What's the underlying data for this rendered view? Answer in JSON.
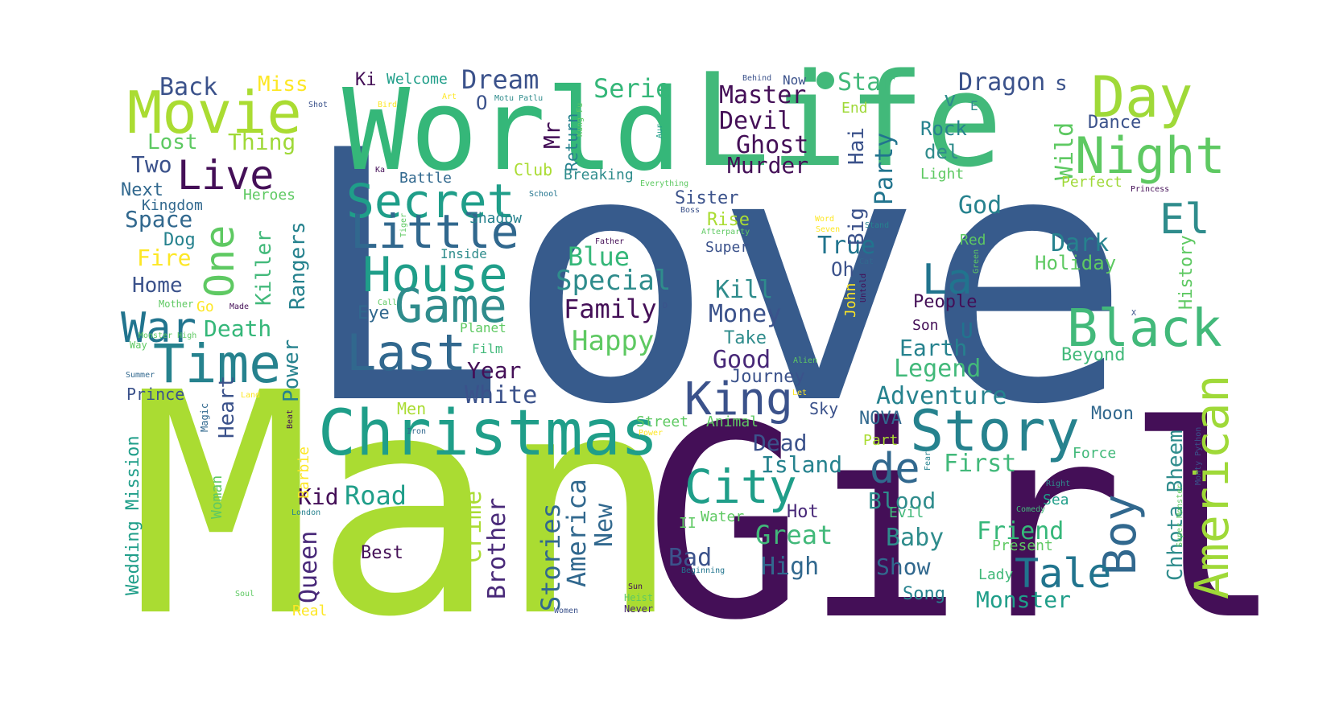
{
  "colors": {
    "background": "#ffffff",
    "palette": {
      "a": "#375b8c",
      "b": "#aadc32",
      "c": "#440f57",
      "d": "#2f8c8c",
      "e": "#42b97a",
      "f": "#21748e",
      "g": "#fde725",
      "h": "#5ec962",
      "i": "#482878",
      "j": "#3b528b",
      "k": "#9fd938",
      "l": "#26828e",
      "m": "#1f9e89",
      "n": "#31688e",
      "o": "#35b779"
    }
  },
  "words": [
    {
      "t": "Love",
      "c": "a"
    },
    {
      "t": "Man",
      "c": "b"
    },
    {
      "t": "Girl",
      "c": "c"
    },
    {
      "t": "World",
      "c": "o"
    },
    {
      "t": "Life",
      "c": "e"
    },
    {
      "t": "Christmas",
      "c": "m"
    },
    {
      "t": "Movie",
      "c": "b"
    },
    {
      "t": "Day",
      "c": "k"
    },
    {
      "t": "Night",
      "c": "h"
    },
    {
      "t": "Secret",
      "c": "m"
    },
    {
      "t": "Story",
      "c": "l"
    },
    {
      "t": "Time",
      "c": "l"
    },
    {
      "t": "House",
      "c": "m"
    },
    {
      "t": "Game",
      "c": "d"
    },
    {
      "t": "Last",
      "c": "n"
    },
    {
      "t": "Little",
      "c": "n"
    },
    {
      "t": "Black",
      "c": "e"
    },
    {
      "t": "City",
      "c": "m"
    },
    {
      "t": "King",
      "c": "j"
    },
    {
      "t": "American",
      "c": "k"
    },
    {
      "t": "Live",
      "c": "c"
    },
    {
      "t": "One",
      "c": "h"
    },
    {
      "t": "War",
      "c": "f"
    },
    {
      "t": "Boy",
      "c": "n"
    },
    {
      "t": "Tale",
      "c": "f"
    },
    {
      "t": "de",
      "c": "n"
    },
    {
      "t": "La",
      "c": "f"
    },
    {
      "t": "El",
      "c": "d"
    },
    {
      "t": "Special",
      "c": "d"
    },
    {
      "t": "Family",
      "c": "c"
    },
    {
      "t": "Blue",
      "c": "o"
    },
    {
      "t": "Happy",
      "c": "h"
    },
    {
      "t": "Money",
      "c": "j"
    },
    {
      "t": "Kill",
      "c": "d"
    },
    {
      "t": "Good",
      "c": "i"
    },
    {
      "t": "Dream",
      "c": "j"
    },
    {
      "t": "Serie",
      "c": "o"
    },
    {
      "t": "Master",
      "c": "c"
    },
    {
      "t": "Devil",
      "c": "c"
    },
    {
      "t": "Ghost",
      "c": "c"
    },
    {
      "t": "Murder",
      "c": "c"
    },
    {
      "t": "Star",
      "c": "e"
    },
    {
      "t": "Dragon",
      "c": "j"
    },
    {
      "t": "Rock",
      "c": "l"
    },
    {
      "t": "del",
      "c": "d"
    },
    {
      "t": "Dark",
      "c": "l"
    },
    {
      "t": "Holiday",
      "c": "h"
    },
    {
      "t": "God",
      "c": "l"
    },
    {
      "t": "True",
      "c": "f"
    },
    {
      "t": "Party",
      "c": "f"
    },
    {
      "t": "Big",
      "c": "j"
    },
    {
      "t": "Hai",
      "c": "j"
    },
    {
      "t": "Adventure",
      "c": "l"
    },
    {
      "t": "Earth",
      "c": "l"
    },
    {
      "t": "Legend",
      "c": "e"
    },
    {
      "t": "White",
      "c": "j"
    },
    {
      "t": "Year",
      "c": "c"
    },
    {
      "t": "Death",
      "c": "o"
    },
    {
      "t": "Power",
      "c": "l"
    },
    {
      "t": "Heart",
      "c": "j"
    },
    {
      "t": "Road",
      "c": "m"
    },
    {
      "t": "Kid",
      "c": "c"
    },
    {
      "t": "Queen",
      "c": "i"
    },
    {
      "t": "Crime",
      "c": "b"
    },
    {
      "t": "Brother",
      "c": "i"
    },
    {
      "t": "Stories",
      "c": "n"
    },
    {
      "t": "America",
      "c": "n"
    },
    {
      "t": "New",
      "c": "n"
    },
    {
      "t": "Island",
      "c": "l"
    },
    {
      "t": "Dead",
      "c": "j"
    },
    {
      "t": "Great",
      "c": "e"
    },
    {
      "t": "High",
      "c": "n"
    },
    {
      "t": "Bad",
      "c": "j"
    },
    {
      "t": "First",
      "c": "e"
    },
    {
      "t": "Blood",
      "c": "d"
    },
    {
      "t": "Baby",
      "c": "d"
    },
    {
      "t": "Show",
      "c": "n"
    },
    {
      "t": "Friend",
      "c": "o"
    },
    {
      "t": "Monster",
      "c": "m"
    },
    {
      "t": "Chhota Bheem",
      "c": "d"
    },
    {
      "t": "Back",
      "c": "j"
    },
    {
      "t": "Miss",
      "c": "g"
    },
    {
      "t": "Lost",
      "c": "h"
    },
    {
      "t": "Thing",
      "c": "k"
    },
    {
      "t": "Two",
      "c": "j"
    },
    {
      "t": "Next",
      "c": "n"
    },
    {
      "t": "Kingdom",
      "c": "n"
    },
    {
      "t": "Space",
      "c": "n"
    },
    {
      "t": "Dog",
      "c": "l"
    },
    {
      "t": "Fire",
      "c": "g"
    },
    {
      "t": "Home",
      "c": "j"
    },
    {
      "t": "Killer",
      "c": "e"
    },
    {
      "t": "Rangers",
      "c": "l"
    },
    {
      "t": "Heroes",
      "c": "h"
    },
    {
      "t": "Prince",
      "c": "j"
    },
    {
      "t": "Ki",
      "c": "c"
    },
    {
      "t": "Welcome",
      "c": "m"
    },
    {
      "t": "O",
      "c": "j"
    },
    {
      "t": "Mr",
      "c": "c"
    },
    {
      "t": "Return",
      "c": "l"
    },
    {
      "t": "Club",
      "c": "b"
    },
    {
      "t": "Battle",
      "c": "n"
    },
    {
      "t": "Breaking",
      "c": "d"
    },
    {
      "t": "Shadow",
      "c": "l"
    },
    {
      "t": "Inside",
      "c": "d"
    },
    {
      "t": "Planet",
      "c": "h"
    },
    {
      "t": "Film",
      "c": "e"
    },
    {
      "t": "Eye",
      "c": "n"
    },
    {
      "t": "Take",
      "c": "d"
    },
    {
      "t": "Journey",
      "c": "j"
    },
    {
      "t": "Sister",
      "c": "j"
    },
    {
      "t": "Rise",
      "c": "b"
    },
    {
      "t": "Super",
      "c": "j"
    },
    {
      "t": "Oh",
      "c": "j"
    },
    {
      "t": "Sky",
      "c": "j"
    },
    {
      "t": "NOVA",
      "c": "n"
    },
    {
      "t": "Street",
      "c": "h"
    },
    {
      "t": "Animal",
      "c": "h"
    },
    {
      "t": "Men",
      "c": "b"
    },
    {
      "t": "Part",
      "c": "b"
    },
    {
      "t": "Hot",
      "c": "i"
    },
    {
      "t": "Evil",
      "c": "e"
    },
    {
      "t": "Water",
      "c": "h"
    },
    {
      "t": "II",
      "c": "h"
    },
    {
      "t": "Best",
      "c": "c"
    },
    {
      "t": "Song",
      "c": "l"
    },
    {
      "t": "Lady",
      "c": "e"
    },
    {
      "t": "Present",
      "c": "h"
    },
    {
      "t": "Sea",
      "c": "m"
    },
    {
      "t": "Force",
      "c": "e"
    },
    {
      "t": "Moon",
      "c": "n"
    },
    {
      "t": "People",
      "c": "c"
    },
    {
      "t": "Son",
      "c": "c"
    },
    {
      "t": "U",
      "c": "f"
    },
    {
      "t": "End",
      "c": "k"
    },
    {
      "t": "v",
      "c": "d"
    },
    {
      "t": "s",
      "c": "j"
    },
    {
      "t": "Wild",
      "c": "h"
    },
    {
      "t": "Light",
      "c": "h"
    },
    {
      "t": "Dance",
      "c": "j"
    },
    {
      "t": "Perfect",
      "c": "k"
    },
    {
      "t": "Red",
      "c": "h"
    },
    {
      "t": "History",
      "c": "h"
    },
    {
      "t": "Beyond",
      "c": "e"
    },
    {
      "t": "Wedding Mission",
      "c": "m"
    },
    {
      "t": "Woman",
      "c": "h"
    },
    {
      "t": "Barbie",
      "c": "g"
    },
    {
      "t": "Magic",
      "c": "n"
    },
    {
      "t": "Go",
      "c": "g"
    },
    {
      "t": "Real",
      "c": "g"
    },
    {
      "t": "Soul",
      "c": "h"
    },
    {
      "t": "John",
      "c": "g"
    },
    {
      "t": "Untold",
      "c": "c"
    },
    {
      "t": "Now",
      "c": "j"
    },
    {
      "t": "Behind",
      "c": "j"
    },
    {
      "t": "E",
      "c": "d"
    },
    {
      "t": "Everything",
      "c": "h"
    },
    {
      "t": "Princess",
      "c": "c"
    },
    {
      "t": "Kung Fu",
      "c": "h"
    },
    {
      "t": "Aur",
      "c": "m"
    },
    {
      "t": "Motu Patlu",
      "c": "d"
    },
    {
      "t": "Art",
      "c": "g"
    },
    {
      "t": "Bird",
      "c": "g"
    },
    {
      "t": "Shot",
      "c": "j"
    },
    {
      "t": "Ka",
      "c": "c"
    },
    {
      "t": "School",
      "c": "f"
    },
    {
      "t": "Tiger",
      "c": "h"
    },
    {
      "t": "Call",
      "c": "h"
    },
    {
      "t": "Boss",
      "c": "j"
    },
    {
      "t": "Afterparty",
      "c": "h"
    },
    {
      "t": "Father",
      "c": "c"
    },
    {
      "t": "D",
      "c": "j"
    },
    {
      "t": "Word",
      "c": "g"
    },
    {
      "t": "Seven",
      "c": "g"
    },
    {
      "t": "Stand",
      "c": "l"
    },
    {
      "t": "Cat",
      "c": "n"
    },
    {
      "t": "Green",
      "c": "h"
    },
    {
      "t": "Alien",
      "c": "h"
    },
    {
      "t": "Let",
      "c": "g"
    },
    {
      "t": "Made",
      "c": "c"
    },
    {
      "t": "Mother",
      "c": "h"
    },
    {
      "t": "Monster High",
      "c": "h"
    },
    {
      "t": "Way",
      "c": "h"
    },
    {
      "t": "Summer",
      "c": "n"
    },
    {
      "t": "Land",
      "c": "g"
    },
    {
      "t": "Beat",
      "c": "c"
    },
    {
      "t": "Iron",
      "c": "n"
    },
    {
      "t": "Power",
      "c": "g"
    },
    {
      "t": "London",
      "c": "l"
    },
    {
      "t": "Beginning",
      "c": "f"
    },
    {
      "t": "Sun",
      "c": "c"
    },
    {
      "t": "Heist",
      "c": "h"
    },
    {
      "t": "Never",
      "c": "i"
    },
    {
      "t": "Women",
      "c": "j"
    },
    {
      "t": "Fear",
      "c": "l"
    },
    {
      "t": "Right",
      "c": "d"
    },
    {
      "t": "Comedy",
      "c": "e"
    },
    {
      "t": "Super Monster",
      "c": "h"
    },
    {
      "t": "Monty Python",
      "c": "j"
    },
    {
      "t": "X",
      "c": "j"
    },
    {
      "t": "dot",
      "c": "e"
    }
  ]
}
